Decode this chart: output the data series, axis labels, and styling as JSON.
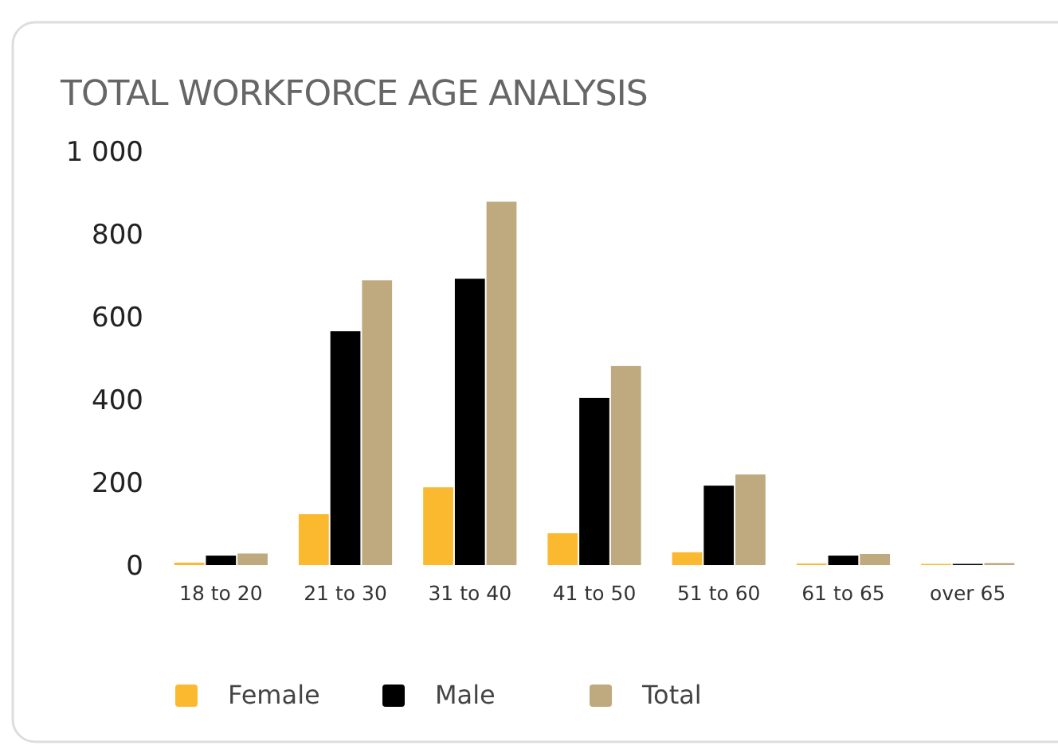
{
  "chart_data": {
    "type": "bar",
    "title": "TOTAL WORKFORCE AGE ANALYSIS",
    "categories": [
      "18 to 20",
      "21 to 30",
      "31 to 40",
      "41 to 50",
      "51 to 60",
      "61 to 65",
      "over 65"
    ],
    "series": [
      {
        "name": "Female",
        "color": "#fbb92f",
        "values": [
          6,
          123,
          188,
          77,
          31,
          4,
          3
        ]
      },
      {
        "name": "Male",
        "color": "#000000",
        "values": [
          23,
          565,
          692,
          404,
          192,
          23,
          3
        ]
      },
      {
        "name": "Total",
        "color": "#bfa97e",
        "values": [
          28,
          688,
          878,
          481,
          219,
          27,
          5
        ]
      }
    ],
    "ylim": [
      0,
      1000
    ],
    "yticks": [
      0,
      200,
      400,
      600,
      800,
      {
        "value": 1000,
        "label": "1 000"
      }
    ],
    "grid": false,
    "legend": "bottom"
  }
}
